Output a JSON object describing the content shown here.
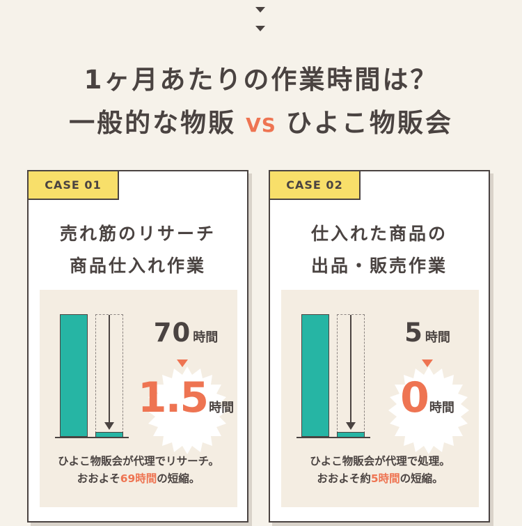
{
  "header": {
    "line1": "1ヶ月あたりの作業時間は？",
    "left": "一般的な物販",
    "vs": "VS",
    "right": "ひよこ物販会"
  },
  "colors": {
    "accent": "#ee7452",
    "bar": "#26b5a4",
    "tag": "#f8df6a",
    "text": "#4a4341"
  },
  "cases": [
    {
      "tag": "CASE 01",
      "title1": "売れ筋のリサーチ",
      "title2": "商品仕入れ作業",
      "before_value": "70",
      "before_unit": "時間",
      "after_value": "1.5",
      "after_unit": "時間",
      "note1": "ひよこ物販会が代理でリサーチ。",
      "note2_pre": "おおよそ",
      "note2_hl": "69時間",
      "note2_post": "の短縮。"
    },
    {
      "tag": "CASE 02",
      "title1": "仕入れた商品の",
      "title2": "出品・販売作業",
      "before_value": "5",
      "before_unit": "時間",
      "after_value": "0",
      "after_unit": "時間",
      "note1": "ひよこ物販会が代理で処理。",
      "note2_pre": "おおよそ約",
      "note2_hl": "5時間",
      "note2_post": "の短縮。"
    }
  ]
}
